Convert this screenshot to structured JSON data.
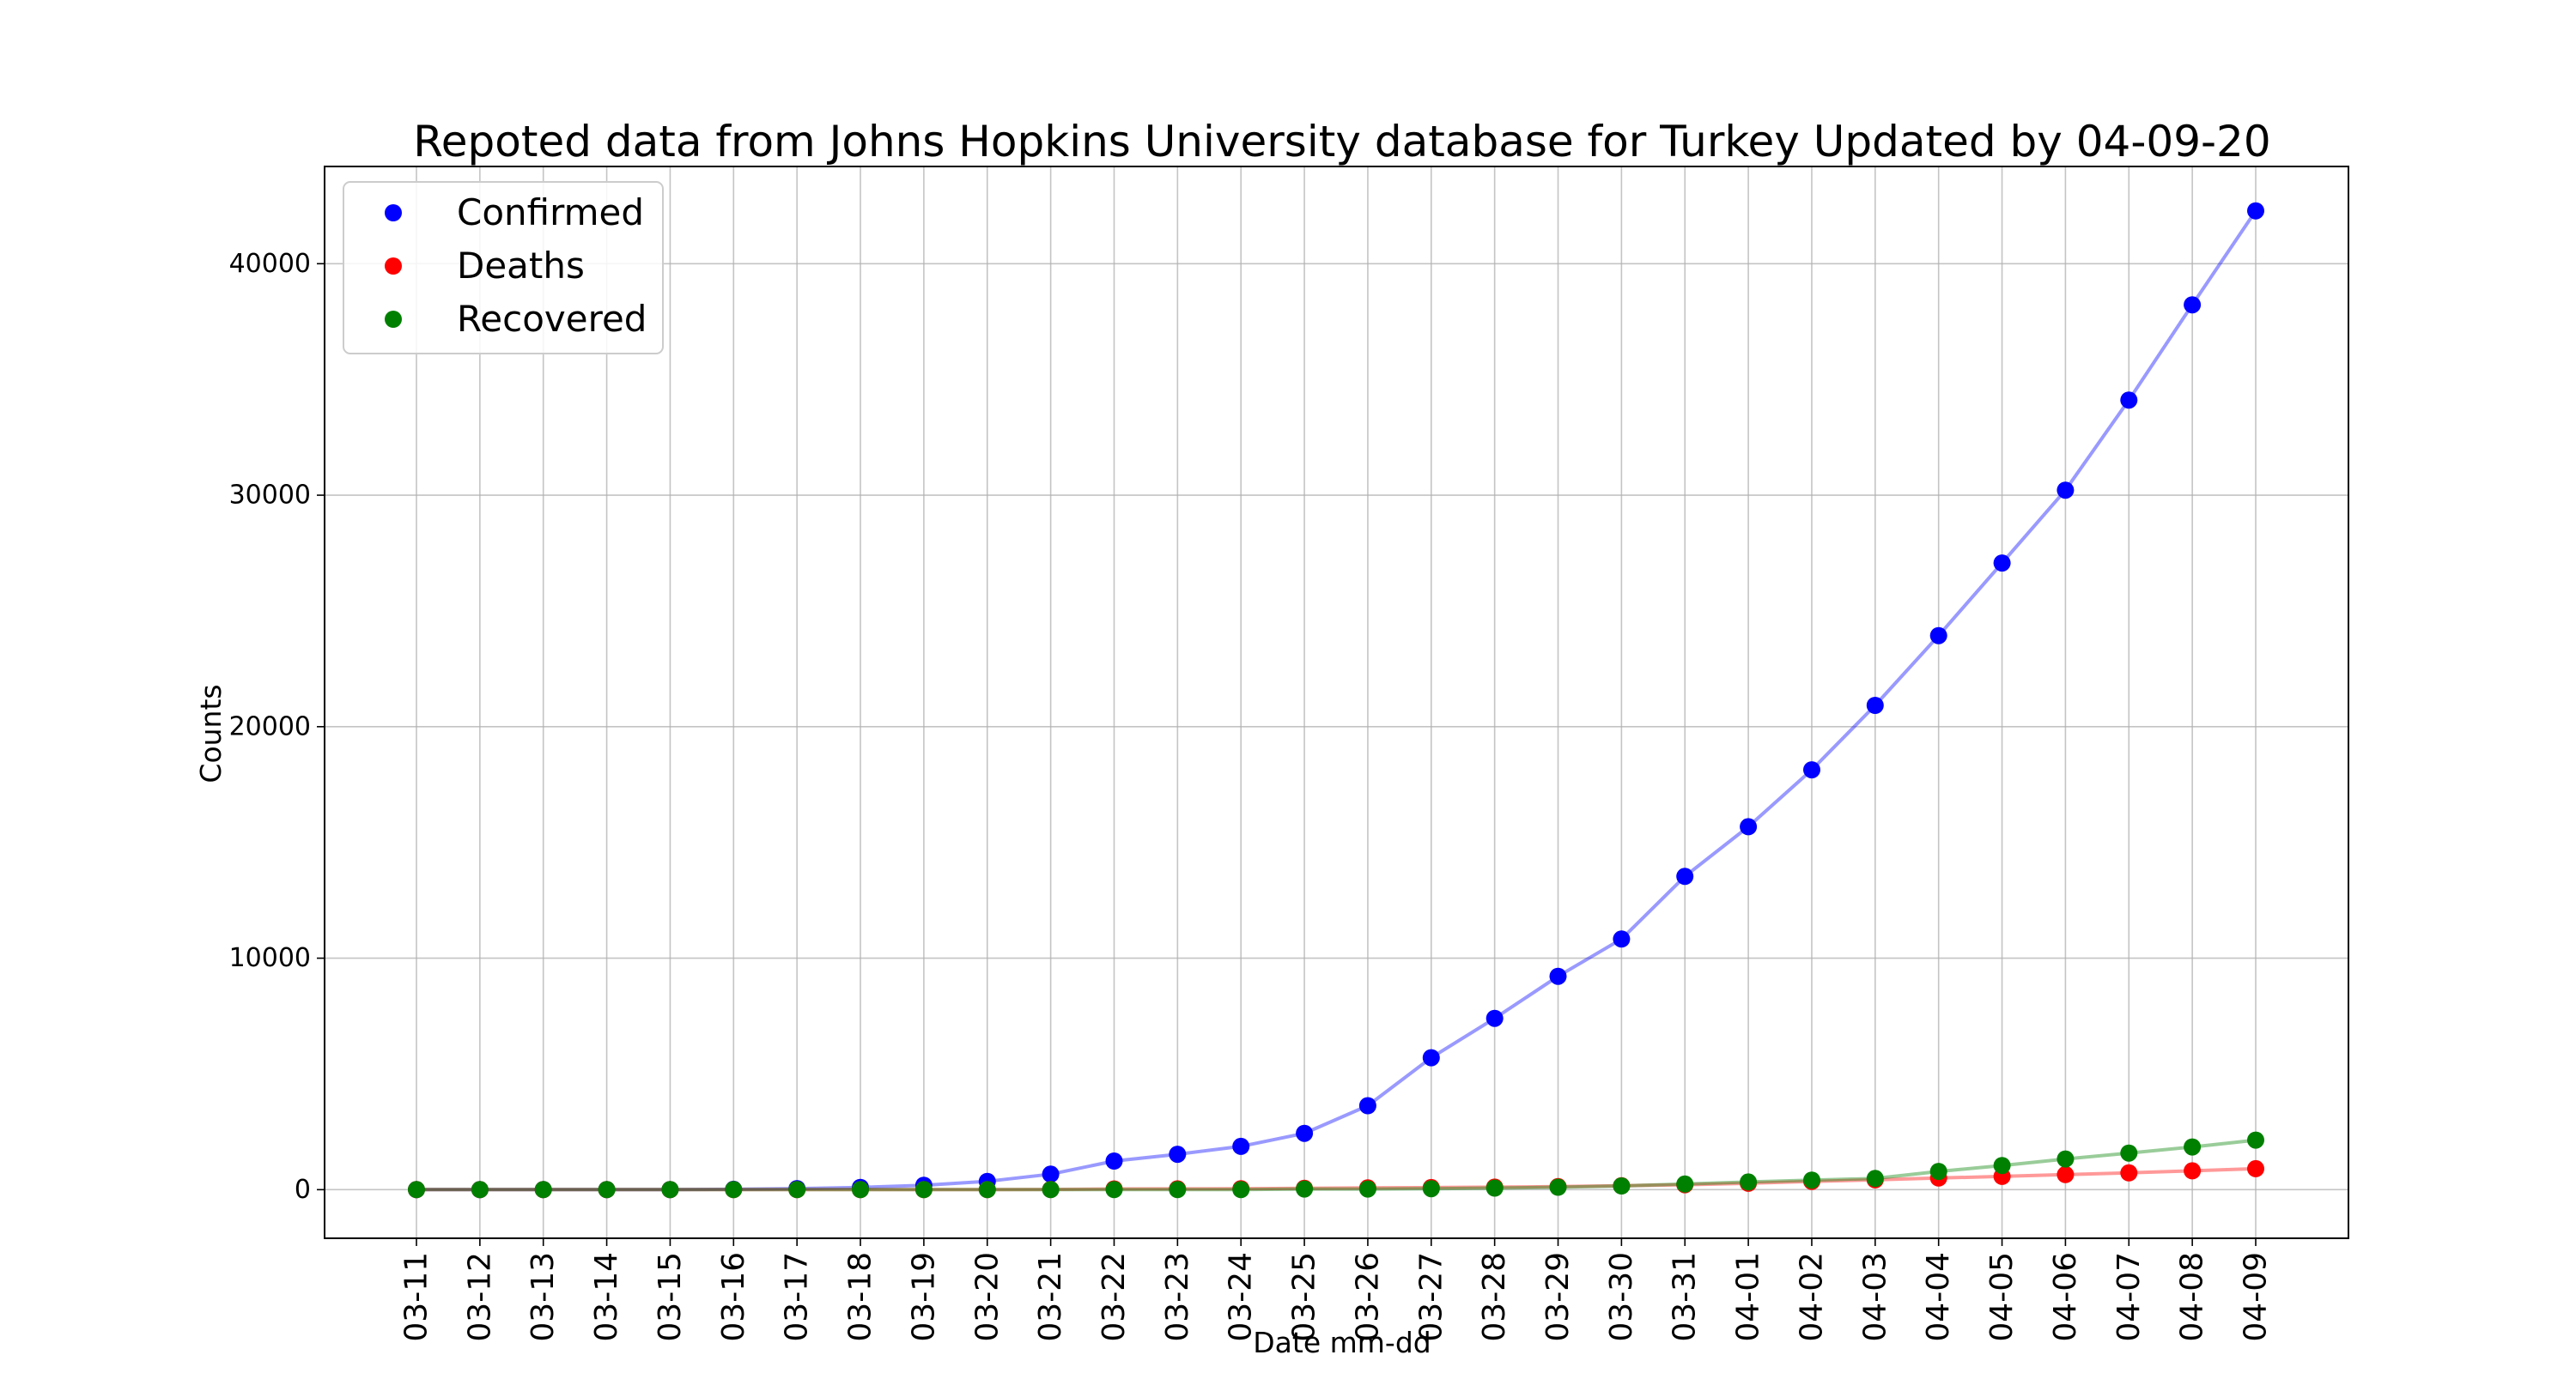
{
  "chart_data": {
    "type": "line",
    "title": "Repoted data from Johns Hopkins University database for Turkey Updated by 04-09-20",
    "xlabel": "Date mm-dd",
    "ylabel": "Counts",
    "ylim": [
      -2100,
      44200
    ],
    "yticks": [
      0,
      10000,
      20000,
      30000,
      40000
    ],
    "grid": true,
    "legend_position": "top-left",
    "categories": [
      "03-11",
      "03-12",
      "03-13",
      "03-14",
      "03-15",
      "03-16",
      "03-17",
      "03-18",
      "03-19",
      "03-20",
      "03-21",
      "03-22",
      "03-23",
      "03-24",
      "03-25",
      "03-26",
      "03-27",
      "03-28",
      "03-29",
      "03-30",
      "03-31",
      "04-01",
      "04-02",
      "04-03",
      "04-04",
      "04-05",
      "04-06",
      "04-07",
      "04-08",
      "04-09"
    ],
    "series": [
      {
        "name": "Confirmed",
        "color": "#0000ff",
        "values": [
          1,
          1,
          5,
          5,
          6,
          18,
          47,
          98,
          191,
          359,
          670,
          1236,
          1529,
          1872,
          2433,
          3629,
          5698,
          7402,
          9217,
          10827,
          13531,
          15679,
          18135,
          20921,
          23934,
          27069,
          30217,
          34109,
          38226,
          42282
        ]
      },
      {
        "name": "Deaths",
        "color": "#ff0000",
        "values": [
          0,
          0,
          0,
          0,
          0,
          0,
          1,
          1,
          2,
          4,
          9,
          30,
          37,
          44,
          59,
          75,
          92,
          108,
          131,
          168,
          214,
          277,
          356,
          425,
          501,
          574,
          649,
          725,
          812,
          908
        ]
      },
      {
        "name": "Recovered",
        "color": "#008000",
        "values": [
          0,
          0,
          0,
          0,
          0,
          0,
          0,
          0,
          0,
          0,
          0,
          0,
          0,
          0,
          26,
          26,
          42,
          70,
          105,
          162,
          243,
          333,
          415,
          484,
          786,
          1042,
          1326,
          1582,
          1846,
          2142
        ]
      }
    ]
  }
}
